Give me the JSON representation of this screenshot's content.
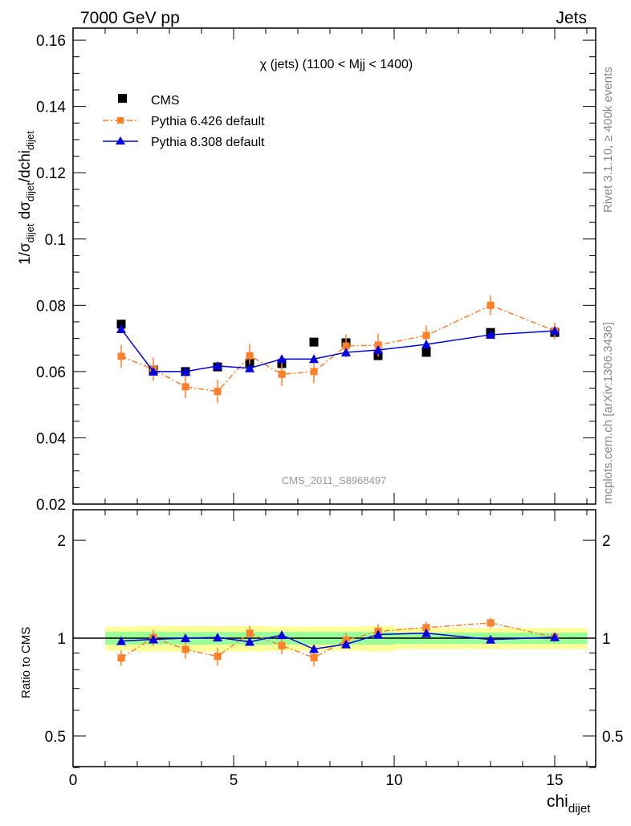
{
  "header": {
    "left": "7000 GeV pp",
    "right": "Jets"
  },
  "side_labels": {
    "rivet": "Rivet 3.1.10, ≥ 400k events",
    "mcplots": "mcplots.cern.ch [arXiv:1306.3436]"
  },
  "chart_data": [
    {
      "type": "scatter",
      "title": "χ (jets) (1100 < Mjj < 1400)",
      "watermark": "CMS_2011_S8968497",
      "ylabel": "1/σ_dijet dσ_dijet/dchi_dijet",
      "ylim": [
        0.02,
        0.164
      ],
      "xlim": [
        0,
        16.3
      ],
      "yticks": [
        "0.02",
        "0.04",
        "0.06",
        "0.08",
        "0.1",
        "0.12",
        "0.14",
        "0.16"
      ],
      "x": [
        1.5,
        2.5,
        3.5,
        4.5,
        5.5,
        6.5,
        7.5,
        8.5,
        9.5,
        11,
        13,
        15
      ],
      "bin_edges": [
        1,
        2,
        3,
        4,
        5,
        6,
        7,
        8,
        9,
        10,
        12,
        14,
        16
      ],
      "legend_position": "top-left",
      "series": [
        {
          "name": "CMS",
          "color": "#000000",
          "marker": "square",
          "values": [
            0.0743,
            0.0605,
            0.06,
            0.0614,
            0.0626,
            0.0624,
            0.0689,
            0.0687,
            0.0648,
            0.0658,
            0.0718,
            0.0718
          ],
          "errors": [
            0,
            0,
            0,
            0,
            0,
            0,
            0,
            0,
            0,
            0,
            0,
            0
          ]
        },
        {
          "name": "Pythia 6.426 default",
          "color": "#ff7f2a",
          "marker": "square",
          "line": "dashdot",
          "values": [
            0.0646,
            0.0607,
            0.0554,
            0.054,
            0.0648,
            0.0592,
            0.06,
            0.0677,
            0.068,
            0.0709,
            0.08,
            0.0723
          ],
          "errors": [
            0.0035,
            0.0035,
            0.0035,
            0.0035,
            0.0035,
            0.0035,
            0.0035,
            0.0035,
            0.0035,
            0.003,
            0.003,
            0.0025
          ]
        },
        {
          "name": "Pythia 8.308 default",
          "color": "#0000e0",
          "marker": "triangle",
          "line": "solid",
          "values": [
            0.0728,
            0.06,
            0.06,
            0.0617,
            0.061,
            0.0638,
            0.0638,
            0.0658,
            0.0665,
            0.0682,
            0.0711,
            0.0723
          ],
          "errors": [
            0.001,
            0.001,
            0.001,
            0.001,
            0.001,
            0.001,
            0.001,
            0.001,
            0.001,
            0.001,
            0.001,
            0.001
          ]
        }
      ]
    },
    {
      "type": "line",
      "ylabel": "Ratio to CMS",
      "xlabel": "chi_dijet",
      "yscale": "log",
      "ylim": [
        0.4,
        2.48
      ],
      "yticks": [
        "0.5",
        "1",
        "2"
      ],
      "xticks": [
        "0",
        "5",
        "10",
        "15"
      ],
      "bands": {
        "yellow_halfwidth": [
          0.085,
          0.09,
          0.09,
          0.09,
          0.09,
          0.085,
          0.085,
          0.085,
          0.09,
          0.075,
          0.075,
          0.075
        ],
        "green_halfwidth": [
          0.045,
          0.045,
          0.045,
          0.045,
          0.045,
          0.045,
          0.045,
          0.045,
          0.045,
          0.04,
          0.04,
          0.04
        ]
      }
    }
  ]
}
